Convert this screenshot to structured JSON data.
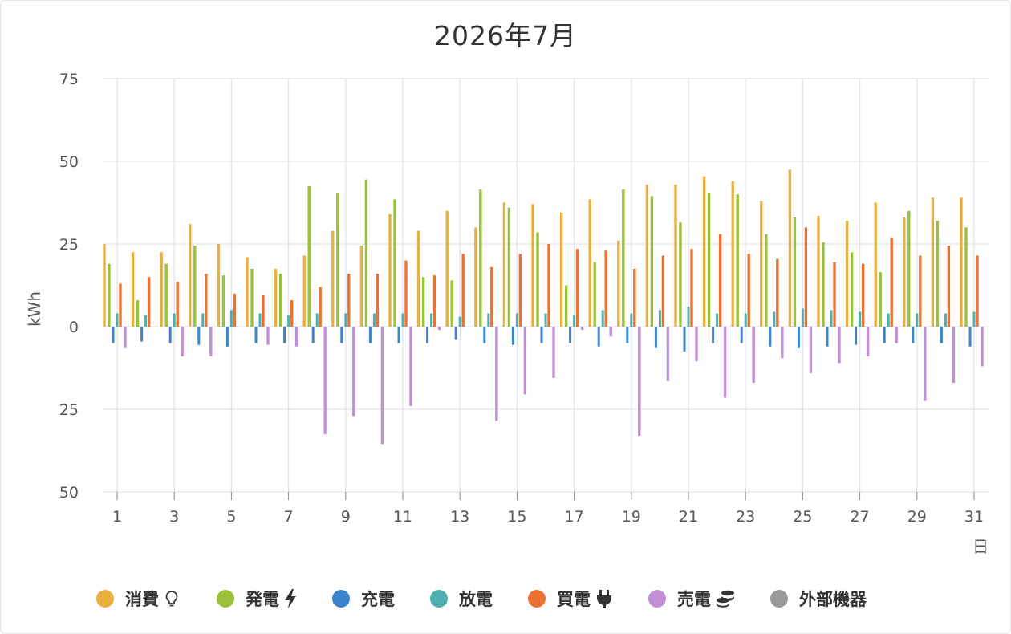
{
  "chart_data": {
    "type": "bar",
    "title": "2026年7月",
    "ylabel": "kWh",
    "xlabel": "日",
    "ylim": [
      -50,
      75
    ],
    "y_ticks": [
      75,
      50,
      25,
      0,
      -25,
      -50
    ],
    "y_tick_labels": [
      "75",
      "50",
      "25",
      "0",
      "25",
      "50"
    ],
    "x_tick_labels": [
      "1",
      "3",
      "5",
      "7",
      "9",
      "11",
      "13",
      "15",
      "17",
      "19",
      "21",
      "23",
      "25",
      "27",
      "29",
      "31"
    ],
    "grid": true,
    "legend_position": "bottom",
    "categories": [
      "1",
      "2",
      "3",
      "4",
      "5",
      "6",
      "7",
      "8",
      "9",
      "10",
      "11",
      "12",
      "13",
      "14",
      "15",
      "16",
      "17",
      "18",
      "19",
      "20",
      "21",
      "22",
      "23",
      "24",
      "25",
      "26",
      "27",
      "28",
      "29",
      "30",
      "31"
    ],
    "series": [
      {
        "name": "消費",
        "color": "#e8b040",
        "icon": "lightbulb-icon",
        "values": [
          25,
          22.5,
          22.5,
          31,
          25,
          21,
          17.5,
          21.5,
          29,
          24.5,
          34,
          29,
          35,
          30,
          37.5,
          37,
          34.5,
          38.5,
          26,
          43,
          43,
          45.5,
          44,
          38,
          47.5,
          33.5,
          32,
          37.5,
          33,
          39,
          39
        ]
      },
      {
        "name": "発電",
        "color": "#9bc03a",
        "icon": "lightning-icon",
        "values": [
          19,
          8,
          19,
          24.5,
          15.5,
          17.5,
          16,
          42.5,
          40.5,
          44.5,
          38.5,
          15,
          14,
          41.5,
          36,
          28.5,
          12.5,
          19.5,
          41.5,
          39.5,
          31.5,
          40.5,
          40,
          28,
          33,
          25.5,
          22.5,
          16.5,
          35,
          32,
          30
        ]
      },
      {
        "name": "充電",
        "color": "#3a85cc",
        "icon": "",
        "values": [
          -5,
          -4.5,
          -5,
          -5.5,
          -6,
          -5,
          -5,
          -5,
          -5,
          -5,
          -5,
          -5,
          -4,
          -5,
          -5.5,
          -5,
          -5,
          -6,
          -5,
          -6.5,
          -7.5,
          -5,
          -5,
          -6,
          -6.5,
          -6,
          -5.5,
          -5,
          -5,
          -5,
          -6
        ]
      },
      {
        "name": "放電",
        "color": "#4bb0ae",
        "icon": "",
        "values": [
          4,
          3.5,
          4,
          4,
          5,
          4,
          3.5,
          4,
          4,
          4,
          4,
          4,
          3,
          4,
          4,
          4,
          3.5,
          5,
          4,
          5,
          6,
          4,
          4,
          4.5,
          5.5,
          5,
          4.5,
          4,
          4,
          4,
          4.5
        ]
      },
      {
        "name": "買電",
        "color": "#ec7234",
        "icon": "plug-icon",
        "values": [
          13,
          15,
          13.5,
          16,
          10,
          9.5,
          8,
          12,
          16,
          16,
          20,
          15.5,
          22,
          18,
          22,
          25,
          23.5,
          23,
          17.5,
          21.5,
          23.5,
          28,
          22,
          20.5,
          30,
          19.5,
          19,
          27,
          21.5,
          24.5,
          21.5
        ]
      },
      {
        "name": "売電",
        "color": "#c18fd6",
        "icon": "coins-icon",
        "values": [
          -6.5,
          0,
          -9,
          -9,
          0,
          -5.5,
          -6,
          -32.5,
          -27,
          -35.5,
          -24,
          -1,
          0,
          -28.5,
          -20.5,
          -15.5,
          -1,
          -3,
          -33,
          -16.5,
          -10.5,
          -21.5,
          -17,
          -9.5,
          -14,
          -11,
          -9,
          -5,
          -22.5,
          -17,
          -12
        ]
      },
      {
        "name": "外部機器",
        "color": "#999999",
        "icon": "",
        "values": [
          0,
          0,
          0,
          0,
          0,
          0,
          0,
          0,
          0,
          0,
          0,
          0,
          0,
          0,
          0,
          0,
          0,
          0,
          0,
          0,
          0,
          0,
          0,
          0,
          0,
          0,
          0,
          0,
          0,
          0,
          0
        ]
      }
    ]
  }
}
